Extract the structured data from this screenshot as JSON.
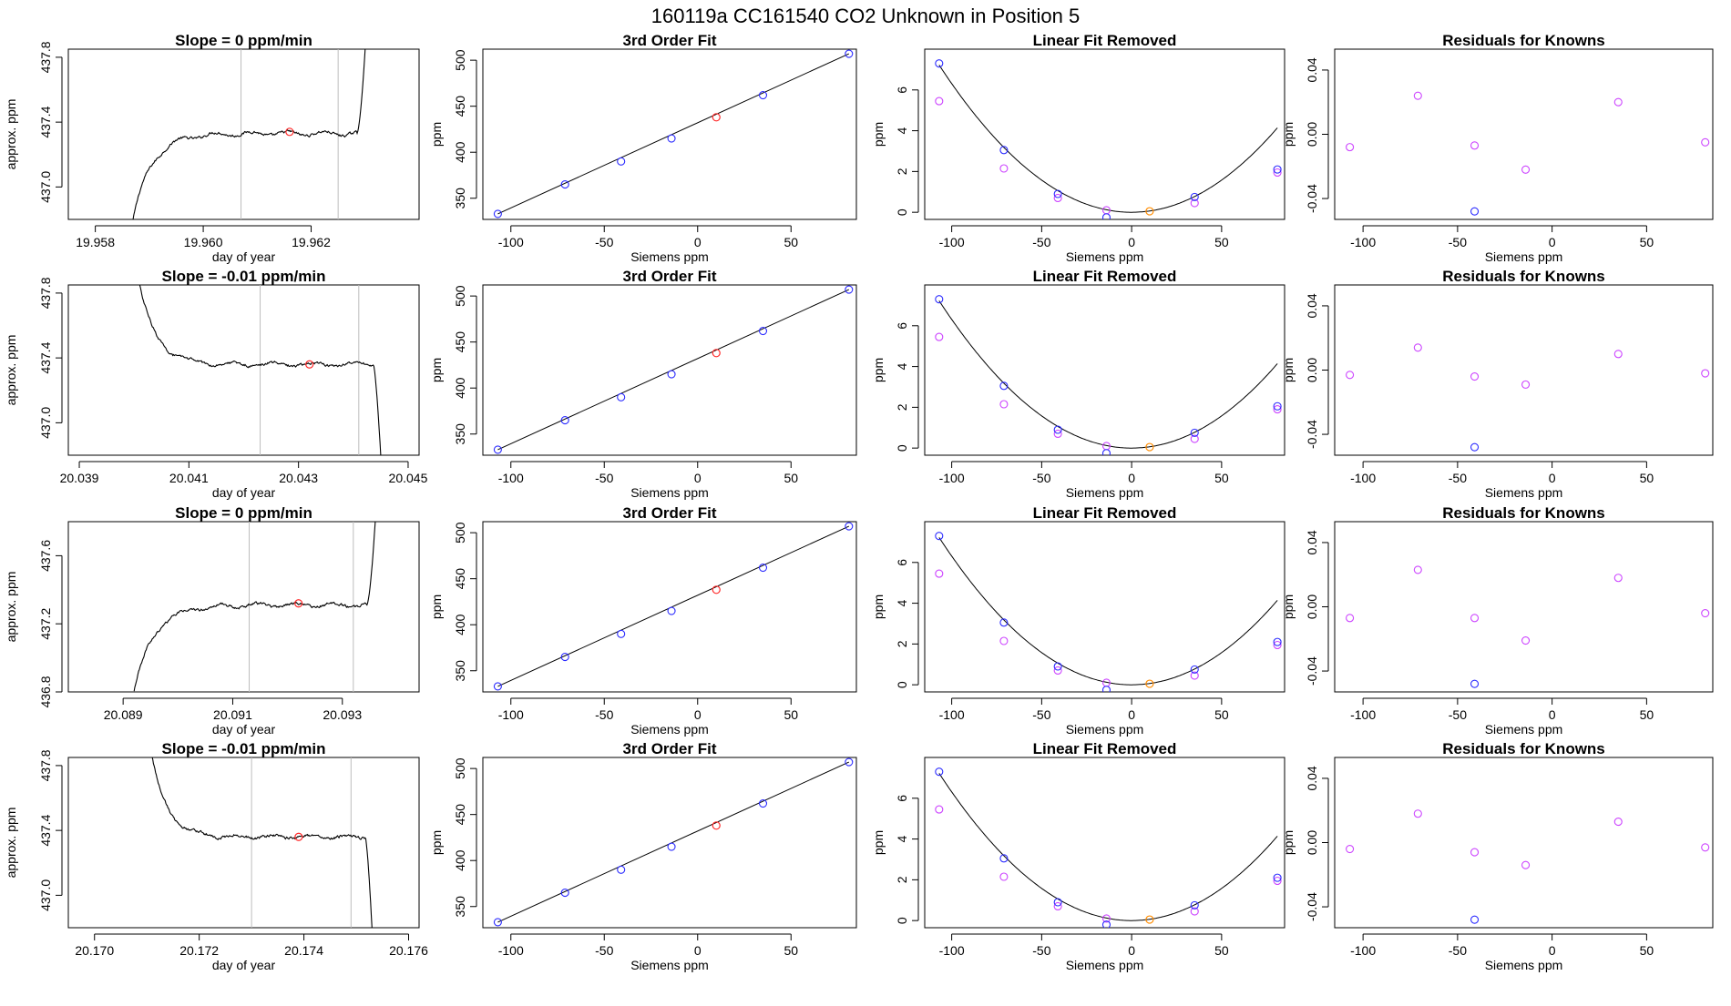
{
  "figure": {
    "title": "160119a      CC161540    CO2 Unknown in Position  5",
    "colors": {
      "background": "#ffffff",
      "axes": "#000000",
      "trace": "#000000",
      "window_lines": "#bdbdbd",
      "unknown_point": "#ff2a2a",
      "known_point": "#2b2bff",
      "raw_point": "#cc44ff",
      "fit_unknown_point": "#ff8c00"
    }
  },
  "chart_data": [
    {
      "type": "line",
      "row": 1,
      "col": 1,
      "title": "Slope =  0  ppm/min",
      "xlabel": "day of year",
      "ylabel": "approx. ppm",
      "xlim": [
        19.9575,
        19.964
      ],
      "ylim": [
        436.8,
        437.85
      ],
      "xticks": [
        19.958,
        19.96,
        19.962
      ],
      "xticklabels": [
        "19.958",
        "19.960",
        "19.962"
      ],
      "yticks": [
        437.0,
        437.4,
        437.8
      ],
      "yticklabels": [
        "437.0",
        "437.4",
        "437.8"
      ],
      "vlines": [
        19.9607,
        19.9625
      ],
      "unknown_point": {
        "x": 19.9616,
        "y": 437.34
      },
      "trace_shape": "rise_right_spike",
      "trace": {
        "x0": 19.9587,
        "x1": 19.963,
        "start": 436.8,
        "plateau": 437.33,
        "end": 437.85
      }
    },
    {
      "type": "scatter",
      "row": 1,
      "col": 2,
      "title": "3rd Order Fit",
      "xlabel": "Siemens ppm",
      "ylabel": "ppm",
      "xlim": [
        -115,
        85
      ],
      "ylim": [
        327,
        512
      ],
      "xticks": [
        -100,
        -50,
        0,
        50
      ],
      "xticklabels": [
        "-100",
        "-50",
        "0",
        "50"
      ],
      "yticks": [
        350,
        400,
        450,
        500
      ],
      "yticklabels": [
        "350",
        "400",
        "450",
        "500"
      ],
      "line": {
        "x": [
          -107,
          81
        ],
        "y": [
          333,
          507
        ]
      },
      "known": {
        "x": [
          -107,
          -71,
          -41,
          -14,
          35,
          81
        ],
        "y": [
          333,
          365,
          390,
          415,
          462,
          507
        ]
      },
      "unknown": {
        "x": [
          10
        ],
        "y": [
          438
        ]
      }
    },
    {
      "type": "scatter",
      "row": 1,
      "col": 3,
      "title": "Linear Fit Removed",
      "xlabel": "Siemens ppm",
      "ylabel": "ppm",
      "xlim": [
        -115,
        85
      ],
      "ylim": [
        -0.35,
        8.0
      ],
      "xticks": [
        -100,
        -50,
        0,
        50
      ],
      "xticklabels": [
        "-100",
        "-50",
        "0",
        "50"
      ],
      "yticks": [
        0,
        2,
        4,
        6
      ],
      "yticklabels": [
        "0",
        "2",
        "4",
        "6"
      ],
      "curve": {
        "a": 0.000631,
        "h": 0,
        "k": 0
      },
      "known": {
        "x": [
          -107,
          -71,
          -41,
          -14,
          35,
          81
        ],
        "y": [
          7.3,
          3.05,
          0.9,
          -0.25,
          0.75,
          2.1
        ]
      },
      "raw": {
        "x": [
          -107,
          -71,
          -41,
          -14,
          35,
          81
        ],
        "y": [
          5.45,
          2.15,
          0.7,
          0.1,
          0.45,
          1.95
        ]
      },
      "unknown": {
        "x": [
          10
        ],
        "y": [
          0.05
        ]
      }
    },
    {
      "type": "scatter",
      "row": 1,
      "col": 4,
      "title": "Residuals for Knowns",
      "xlabel": "Siemens ppm",
      "ylabel": "ppm",
      "xlim": [
        -115,
        85
      ],
      "ylim": [
        -0.053,
        0.053
      ],
      "xticks": [
        -100,
        -50,
        0,
        50
      ],
      "xticklabels": [
        "-100",
        "-50",
        "0",
        "50"
      ],
      "yticks": [
        -0.04,
        0,
        0.04
      ],
      "yticklabels": [
        "-0.04",
        "0.00",
        "0.04"
      ],
      "raw": {
        "x": [
          -107,
          -71,
          -41,
          -14,
          35,
          81
        ],
        "y": [
          -0.008,
          0.024,
          -0.007,
          -0.022,
          0.02,
          -0.005
        ]
      },
      "known": {
        "x": [
          -41
        ],
        "y": [
          -0.048
        ]
      }
    },
    {
      "type": "line",
      "row": 2,
      "col": 1,
      "title": "Slope =  -0.01  ppm/min",
      "xlabel": "day of year",
      "ylabel": "approx. ppm",
      "xlim": [
        20.0388,
        20.0452
      ],
      "ylim": [
        436.8,
        437.85
      ],
      "xticks": [
        20.039,
        20.041,
        20.043,
        20.045
      ],
      "xticklabels": [
        "20.039",
        "20.041",
        "20.043",
        "20.045"
      ],
      "yticks": [
        437.0,
        437.4,
        437.8
      ],
      "yticklabels": [
        "437.0",
        "437.4",
        "437.8"
      ],
      "vlines": [
        20.0423,
        20.0441
      ],
      "unknown_point": {
        "x": 20.0432,
        "y": 437.36
      },
      "trace_shape": "fall_right_drop",
      "trace": {
        "x0": 20.0401,
        "x1": 20.0445,
        "start": 437.85,
        "plateau": 437.36,
        "end": 436.8
      }
    },
    {
      "type": "scatter",
      "row": 2,
      "col": 2,
      "title": "3rd Order Fit",
      "xlabel": "Siemens ppm",
      "ylabel": "ppm",
      "xlim": [
        -115,
        85
      ],
      "ylim": [
        327,
        512
      ],
      "xticks": [
        -100,
        -50,
        0,
        50
      ],
      "xticklabels": [
        "-100",
        "-50",
        "0",
        "50"
      ],
      "yticks": [
        350,
        400,
        450,
        500
      ],
      "yticklabels": [
        "350",
        "400",
        "450",
        "500"
      ],
      "line": {
        "x": [
          -107,
          81
        ],
        "y": [
          333,
          507
        ]
      },
      "known": {
        "x": [
          -107,
          -71,
          -41,
          -14,
          35,
          81
        ],
        "y": [
          333,
          365,
          390,
          415,
          462,
          507
        ]
      },
      "unknown": {
        "x": [
          10
        ],
        "y": [
          438
        ]
      }
    },
    {
      "type": "scatter",
      "row": 2,
      "col": 3,
      "title": "Linear Fit Removed",
      "xlabel": "Siemens ppm",
      "ylabel": "ppm",
      "xlim": [
        -115,
        85
      ],
      "ylim": [
        -0.35,
        8.0
      ],
      "xticks": [
        -100,
        -50,
        0,
        50
      ],
      "xticklabels": [
        "-100",
        "-50",
        "0",
        "50"
      ],
      "yticks": [
        0,
        2,
        4,
        6
      ],
      "yticklabels": [
        "0",
        "2",
        "4",
        "6"
      ],
      "curve": {
        "a": 0.000631,
        "h": 0,
        "k": 0
      },
      "known": {
        "x": [
          -107,
          -71,
          -41,
          -14,
          35,
          81
        ],
        "y": [
          7.3,
          3.05,
          0.9,
          -0.25,
          0.75,
          2.05
        ]
      },
      "raw": {
        "x": [
          -107,
          -71,
          -41,
          -14,
          35,
          81
        ],
        "y": [
          5.45,
          2.15,
          0.7,
          0.1,
          0.45,
          1.9
        ]
      },
      "unknown": {
        "x": [
          10
        ],
        "y": [
          0.05
        ]
      }
    },
    {
      "type": "scatter",
      "row": 2,
      "col": 4,
      "title": "Residuals for Knowns",
      "xlabel": "Siemens ppm",
      "ylabel": "ppm",
      "xlim": [
        -115,
        85
      ],
      "ylim": [
        -0.053,
        0.053
      ],
      "xticks": [
        -100,
        -50,
        0,
        50
      ],
      "xticklabels": [
        "-100",
        "-50",
        "0",
        "50"
      ],
      "yticks": [
        -0.04,
        0,
        0.04
      ],
      "yticklabels": [
        "-0.04",
        "0.00",
        "0.04"
      ],
      "raw": {
        "x": [
          -107,
          -71,
          -41,
          -14,
          35,
          81
        ],
        "y": [
          -0.003,
          0.014,
          -0.004,
          -0.009,
          0.01,
          -0.002
        ]
      },
      "known": {
        "x": [
          -41
        ],
        "y": [
          -0.048
        ]
      }
    },
    {
      "type": "line",
      "row": 3,
      "col": 1,
      "title": "Slope =  0  ppm/min",
      "xlabel": "day of year",
      "ylabel": "approx. ppm",
      "xlim": [
        20.088,
        20.0944
      ],
      "ylim": [
        436.8,
        437.8
      ],
      "xticks": [
        20.089,
        20.091,
        20.093
      ],
      "xticklabels": [
        "20.089",
        "20.091",
        "20.093"
      ],
      "yticks": [
        436.8,
        437.2,
        437.6
      ],
      "yticklabels": [
        "436.8",
        "437.2",
        "437.6"
      ],
      "vlines": [
        20.0913,
        20.0932
      ],
      "unknown_point": {
        "x": 20.0922,
        "y": 437.32
      },
      "trace_shape": "rise_right_spike",
      "trace": {
        "x0": 20.0892,
        "x1": 20.0936,
        "start": 436.8,
        "plateau": 437.31,
        "end": 437.8
      }
    },
    {
      "type": "scatter",
      "row": 3,
      "col": 2,
      "title": "3rd Order Fit",
      "xlabel": "Siemens ppm",
      "ylabel": "ppm",
      "xlim": [
        -115,
        85
      ],
      "ylim": [
        327,
        512
      ],
      "xticks": [
        -100,
        -50,
        0,
        50
      ],
      "xticklabels": [
        "-100",
        "-50",
        "0",
        "50"
      ],
      "yticks": [
        350,
        400,
        450,
        500
      ],
      "yticklabels": [
        "350",
        "400",
        "450",
        "500"
      ],
      "line": {
        "x": [
          -107,
          81
        ],
        "y": [
          333,
          507
        ]
      },
      "known": {
        "x": [
          -107,
          -71,
          -41,
          -14,
          35,
          81
        ],
        "y": [
          333,
          365,
          390,
          415,
          462,
          507
        ]
      },
      "unknown": {
        "x": [
          10
        ],
        "y": [
          438
        ]
      }
    },
    {
      "type": "scatter",
      "row": 3,
      "col": 3,
      "title": "Linear Fit Removed",
      "xlabel": "Siemens ppm",
      "ylabel": "ppm",
      "xlim": [
        -115,
        85
      ],
      "ylim": [
        -0.35,
        8.0
      ],
      "xticks": [
        -100,
        -50,
        0,
        50
      ],
      "xticklabels": [
        "-100",
        "-50",
        "0",
        "50"
      ],
      "yticks": [
        0,
        2,
        4,
        6
      ],
      "yticklabels": [
        "0",
        "2",
        "4",
        "6"
      ],
      "curve": {
        "a": 0.000631,
        "h": 0,
        "k": 0
      },
      "known": {
        "x": [
          -107,
          -71,
          -41,
          -14,
          35,
          81
        ],
        "y": [
          7.3,
          3.05,
          0.9,
          -0.25,
          0.75,
          2.1
        ]
      },
      "raw": {
        "x": [
          -107,
          -71,
          -41,
          -14,
          35,
          81
        ],
        "y": [
          5.45,
          2.15,
          0.7,
          0.1,
          0.45,
          1.95
        ]
      },
      "unknown": {
        "x": [
          10
        ],
        "y": [
          0.05
        ]
      }
    },
    {
      "type": "scatter",
      "row": 3,
      "col": 4,
      "title": "Residuals for Knowns",
      "xlabel": "Siemens ppm",
      "ylabel": "ppm",
      "xlim": [
        -115,
        85
      ],
      "ylim": [
        -0.053,
        0.053
      ],
      "xticks": [
        -100,
        -50,
        0,
        50
      ],
      "xticklabels": [
        "-100",
        "-50",
        "0",
        "50"
      ],
      "yticks": [
        -0.04,
        0,
        0.04
      ],
      "yticklabels": [
        "-0.04",
        "0.00",
        "0.04"
      ],
      "raw": {
        "x": [
          -107,
          -71,
          -41,
          -14,
          35,
          81
        ],
        "y": [
          -0.007,
          0.023,
          -0.007,
          -0.021,
          0.018,
          -0.004
        ]
      },
      "known": {
        "x": [
          -41
        ],
        "y": [
          -0.048
        ]
      }
    },
    {
      "type": "line",
      "row": 4,
      "col": 1,
      "title": "Slope =  -0.01  ppm/min",
      "xlabel": "day of year",
      "ylabel": "approx. ppm",
      "xlim": [
        20.1695,
        20.1762
      ],
      "ylim": [
        436.8,
        437.85
      ],
      "xticks": [
        20.17,
        20.172,
        20.174,
        20.176
      ],
      "xticklabels": [
        "20.170",
        "20.172",
        "20.174",
        "20.176"
      ],
      "yticks": [
        437.0,
        437.4,
        437.8
      ],
      "yticklabels": [
        "437.0",
        "437.4",
        "437.8"
      ],
      "vlines": [
        20.173,
        20.1749
      ],
      "unknown_point": {
        "x": 20.1739,
        "y": 437.36
      },
      "trace_shape": "fall_right_drop",
      "trace": {
        "x0": 20.1711,
        "x1": 20.1753,
        "start": 437.85,
        "plateau": 437.36,
        "end": 436.8
      }
    },
    {
      "type": "scatter",
      "row": 4,
      "col": 2,
      "title": "3rd Order Fit",
      "xlabel": "Siemens ppm",
      "ylabel": "ppm",
      "xlim": [
        -115,
        85
      ],
      "ylim": [
        327,
        512
      ],
      "xticks": [
        -100,
        -50,
        0,
        50
      ],
      "xticklabels": [
        "-100",
        "-50",
        "0",
        "50"
      ],
      "yticks": [
        350,
        400,
        450,
        500
      ],
      "yticklabels": [
        "350",
        "400",
        "450",
        "500"
      ],
      "line": {
        "x": [
          -107,
          81
        ],
        "y": [
          333,
          507
        ]
      },
      "known": {
        "x": [
          -107,
          -71,
          -41,
          -14,
          35,
          81
        ],
        "y": [
          333,
          365,
          390,
          415,
          462,
          507
        ]
      },
      "unknown": {
        "x": [
          10
        ],
        "y": [
          438
        ]
      }
    },
    {
      "type": "scatter",
      "row": 4,
      "col": 3,
      "title": "Linear Fit Removed",
      "xlabel": "Siemens ppm",
      "ylabel": "ppm",
      "xlim": [
        -115,
        85
      ],
      "ylim": [
        -0.35,
        8.0
      ],
      "xticks": [
        -100,
        -50,
        0,
        50
      ],
      "xticklabels": [
        "-100",
        "-50",
        "0",
        "50"
      ],
      "yticks": [
        0,
        2,
        4,
        6
      ],
      "yticklabels": [
        "0",
        "2",
        "4",
        "6"
      ],
      "curve": {
        "a": 0.000631,
        "h": 0,
        "k": 0
      },
      "known": {
        "x": [
          -107,
          -71,
          -41,
          -14,
          35,
          81
        ],
        "y": [
          7.3,
          3.05,
          0.9,
          -0.2,
          0.75,
          2.1
        ]
      },
      "raw": {
        "x": [
          -107,
          -71,
          -41,
          -14,
          35,
          81
        ],
        "y": [
          5.45,
          2.15,
          0.7,
          0.1,
          0.45,
          1.95
        ]
      },
      "unknown": {
        "x": [
          10
        ],
        "y": [
          0.05
        ]
      }
    },
    {
      "type": "scatter",
      "row": 4,
      "col": 4,
      "title": "Residuals for Knowns",
      "xlabel": "Siemens ppm",
      "ylabel": "ppm",
      "xlim": [
        -115,
        85
      ],
      "ylim": [
        -0.053,
        0.053
      ],
      "xticks": [
        -100,
        -50,
        0,
        50
      ],
      "xticklabels": [
        "-100",
        "-50",
        "0",
        "50"
      ],
      "yticks": [
        -0.04,
        0,
        0.04
      ],
      "yticklabels": [
        "-0.04",
        "0.00",
        "0.04"
      ],
      "raw": {
        "x": [
          -107,
          -71,
          -41,
          -14,
          35,
          81
        ],
        "y": [
          -0.004,
          0.018,
          -0.006,
          -0.014,
          0.013,
          -0.003
        ]
      },
      "known": {
        "x": [
          -41
        ],
        "y": [
          -0.048
        ]
      }
    }
  ]
}
